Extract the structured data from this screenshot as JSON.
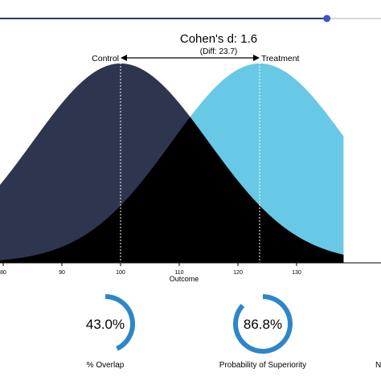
{
  "slider": {
    "value": 1.6,
    "fraction": 0.858,
    "track_color": "#d5d7dc",
    "fill_color": "#2f3a6e",
    "thumb_color": "#3a56c8"
  },
  "chart_data": {
    "type": "area",
    "title": "Cohen's d: 1.6",
    "subtitle": "(Diff: 23.7)",
    "xlabel": "Outcome",
    "ylabel": "",
    "xlim": [
      75,
      138
    ],
    "x_ticks": [
      "80",
      "90",
      "100",
      "110",
      "120",
      "130"
    ],
    "series": [
      {
        "name": "Control",
        "mean": 100,
        "sd": 15,
        "color": "#2e364f"
      },
      {
        "name": "Treatment",
        "mean": 123.7,
        "sd": 15,
        "color": "#67c9e6"
      }
    ],
    "overlap_color": "#000000",
    "legend": "top",
    "grid": false
  },
  "metrics": [
    {
      "value": "43.0%",
      "fraction": 0.43,
      "label": "% Overlap"
    },
    {
      "value": "86.8%",
      "fraction": 0.868,
      "label": "Probability of Superiority"
    },
    {
      "value": "",
      "fraction": 0,
      "label": "N"
    }
  ],
  "colors": {
    "arc": "#2d86c9",
    "arc_track": "#ffffff"
  }
}
